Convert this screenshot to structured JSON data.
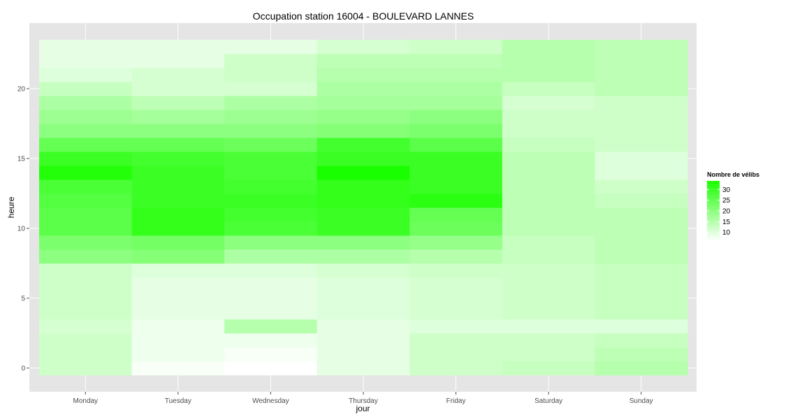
{
  "chart_data": {
    "type": "heatmap",
    "title": "Occupation station 16004 - BOULEVARD LANNES",
    "xlabel": "jour",
    "ylabel": "heure",
    "x_categories": [
      "Monday",
      "Tuesday",
      "Wednesday",
      "Thursday",
      "Friday",
      "Saturday",
      "Sunday"
    ],
    "y_values": [
      0,
      1,
      2,
      3,
      4,
      5,
      6,
      7,
      8,
      9,
      10,
      11,
      12,
      13,
      14,
      15,
      16,
      17,
      18,
      19,
      20,
      21,
      22,
      23
    ],
    "y_ticks": [
      0,
      5,
      10,
      15,
      20
    ],
    "ylim": [
      -0.5,
      23.5
    ],
    "grid": true,
    "values": [
      [
        12,
        7,
        6,
        9,
        12,
        13,
        15
      ],
      [
        12,
        8,
        7,
        9,
        12,
        12,
        14
      ],
      [
        12,
        8,
        8,
        9,
        12,
        12,
        13
      ],
      [
        11,
        8,
        15,
        9,
        10,
        10,
        10
      ],
      [
        12,
        9,
        9,
        10,
        11,
        12,
        13
      ],
      [
        12,
        9,
        9,
        10,
        11,
        12,
        13
      ],
      [
        12,
        9,
        9,
        10,
        11,
        12,
        13
      ],
      [
        12,
        10,
        10,
        11,
        12,
        12,
        13
      ],
      [
        20,
        21,
        16,
        16,
        15,
        13,
        14
      ],
      [
        22,
        23,
        20,
        20,
        19,
        13,
        14
      ],
      [
        26,
        31,
        28,
        30,
        24,
        14,
        14
      ],
      [
        26,
        31,
        29,
        30,
        25,
        14,
        14
      ],
      [
        27,
        30,
        30,
        31,
        32,
        14,
        13
      ],
      [
        28,
        30,
        29,
        31,
        30,
        14,
        12
      ],
      [
        33,
        30,
        28,
        34,
        30,
        14,
        10
      ],
      [
        30,
        29,
        28,
        30,
        30,
        14,
        10
      ],
      [
        25,
        25,
        24,
        29,
        26,
        13,
        12
      ],
      [
        20,
        20,
        20,
        21,
        22,
        12,
        12
      ],
      [
        18,
        17,
        18,
        19,
        20,
        12,
        12
      ],
      [
        16,
        14,
        16,
        17,
        17,
        11,
        12
      ],
      [
        13,
        11,
        11,
        16,
        16,
        13,
        14
      ],
      [
        10,
        11,
        12,
        15,
        15,
        15,
        14
      ],
      [
        9,
        9,
        12,
        14,
        14,
        15,
        14
      ],
      [
        9,
        9,
        9,
        11,
        12,
        15,
        14
      ]
    ],
    "legend": {
      "title": "Nombre de vélibs",
      "ticks": [
        30,
        25,
        20,
        15,
        10
      ],
      "range": [
        6,
        34
      ],
      "position": "right",
      "color_low": "#ffffff",
      "color_high": "#1aff00"
    },
    "colors": {
      "panel_background": "#e5e5e5",
      "grid_line": "#ffffff",
      "tick_text": "#4d4d4d"
    }
  }
}
